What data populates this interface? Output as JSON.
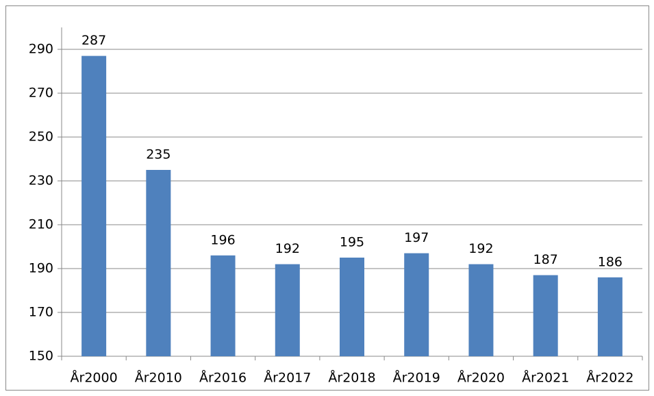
{
  "chart_data": {
    "type": "bar",
    "categories": [
      "År2000",
      "År2010",
      "År2016",
      "År2017",
      "År2018",
      "År2019",
      "År2020",
      "År2021",
      "År2022"
    ],
    "values": [
      287,
      235,
      196,
      192,
      195,
      197,
      192,
      187,
      186
    ],
    "color": "#4f81bd",
    "ylim": [
      150,
      300
    ],
    "yticks": [
      150,
      170,
      190,
      210,
      230,
      250,
      270,
      290
    ],
    "grid": true
  }
}
